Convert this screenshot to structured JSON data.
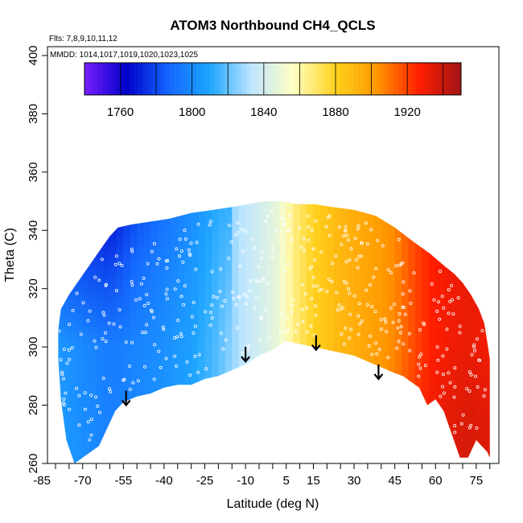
{
  "chart_data": {
    "type": "heatmap",
    "title": "ATOM3 Northbound CH4_QCLS",
    "annotations": {
      "flights": "Flts: 7,8,9,10,11,12",
      "dates": "MMDD: 1014,1017,1019,1020,1023,1025"
    },
    "xlabel": "Latitude (deg N)",
    "ylabel": "Theta (C)",
    "xlim": [
      -85,
      85
    ],
    "ylim": [
      260,
      405
    ],
    "x_ticks": [
      -85,
      -70,
      -55,
      -40,
      -25,
      -10,
      5,
      15,
      30,
      45,
      60,
      75
    ],
    "x_tick_labels": [
      "-85",
      "-70",
      "-55",
      "-40",
      "-25",
      "-10",
      "5",
      "15",
      "30",
      "45",
      "60",
      "75"
    ],
    "y_ticks": [
      260,
      280,
      300,
      320,
      340,
      360,
      380,
      400
    ],
    "y_tick_labels": [
      "260",
      "280",
      "300",
      "320",
      "340",
      "360",
      "380",
      "400"
    ],
    "colorbar": {
      "range": [
        1740,
        1950
      ],
      "ticks": [
        1760,
        1800,
        1840,
        1880,
        1920
      ],
      "tick_labels": [
        "1760",
        "1800",
        "1840",
        "1880",
        "1920"
      ],
      "colors": [
        "#7a1fff",
        "#0000c8",
        "#1465ff",
        "#1ea6ff",
        "#bfe6ff",
        "#ffffc0",
        "#ffd21e",
        "#ff9600",
        "#ff1e00",
        "#a01414"
      ]
    },
    "field": {
      "upper_boundary": [
        [
          -78,
          313
        ],
        [
          -75,
          318
        ],
        [
          -72,
          322
        ],
        [
          -69,
          326
        ],
        [
          -66,
          330
        ],
        [
          -63,
          334
        ],
        [
          -60,
          338
        ],
        [
          -57,
          341
        ],
        [
          -52,
          342
        ],
        [
          -45,
          343
        ],
        [
          -38,
          344
        ],
        [
          -30,
          346
        ],
        [
          -22,
          347
        ],
        [
          -15,
          348
        ],
        [
          -9,
          349
        ],
        [
          -3,
          350
        ],
        [
          3,
          350
        ],
        [
          9,
          349
        ],
        [
          15,
          349
        ],
        [
          22,
          348
        ],
        [
          30,
          347
        ],
        [
          38,
          345
        ],
        [
          45,
          341
        ],
        [
          52,
          336
        ],
        [
          58,
          332
        ],
        [
          63,
          328
        ],
        [
          67,
          325
        ],
        [
          70,
          322
        ],
        [
          73,
          318
        ],
        [
          76,
          313
        ],
        [
          78,
          308
        ],
        [
          79,
          302
        ],
        [
          80,
          296
        ],
        [
          80,
          290
        ]
      ],
      "lower_boundary": [
        [
          80,
          262
        ],
        [
          79,
          264
        ],
        [
          77,
          266
        ],
        [
          75,
          268
        ],
        [
          72,
          262
        ],
        [
          69,
          262
        ],
        [
          66,
          270
        ],
        [
          63,
          278
        ],
        [
          60,
          282
        ],
        [
          57,
          280
        ],
        [
          54,
          286
        ],
        [
          51,
          288
        ],
        [
          48,
          290
        ],
        [
          45,
          291
        ],
        [
          40,
          293
        ],
        [
          35,
          295
        ],
        [
          30,
          297
        ],
        [
          25,
          298
        ],
        [
          20,
          299
        ],
        [
          15,
          300
        ],
        [
          10,
          301
        ],
        [
          5,
          302
        ],
        [
          0,
          299
        ],
        [
          -5,
          297
        ],
        [
          -10,
          294
        ],
        [
          -15,
          292
        ],
        [
          -20,
          290
        ],
        [
          -25,
          289
        ],
        [
          -30,
          287
        ],
        [
          -35,
          287
        ],
        [
          -40,
          286
        ],
        [
          -45,
          284
        ],
        [
          -50,
          283
        ],
        [
          -55,
          281
        ],
        [
          -58,
          278
        ],
        [
          -61,
          272
        ],
        [
          -64,
          266
        ],
        [
          -67,
          264
        ],
        [
          -70,
          262
        ],
        [
          -73,
          260
        ],
        [
          -76,
          268
        ],
        [
          -78,
          282
        ],
        [
          -79,
          296
        ],
        [
          -79,
          306
        ]
      ],
      "latitude_profile": [
        [
          -80,
          1805
        ],
        [
          -70,
          1800
        ],
        [
          -60,
          1795
        ],
        [
          -50,
          1798
        ],
        [
          -40,
          1802
        ],
        [
          -30,
          1808
        ],
        [
          -20,
          1818
        ],
        [
          -12,
          1832
        ],
        [
          -5,
          1840
        ],
        [
          2,
          1848
        ],
        [
          8,
          1866
        ],
        [
          15,
          1880
        ],
        [
          22,
          1888
        ],
        [
          30,
          1894
        ],
        [
          38,
          1900
        ],
        [
          45,
          1906
        ],
        [
          52,
          1918
        ],
        [
          58,
          1926
        ],
        [
          65,
          1930
        ],
        [
          72,
          1932
        ],
        [
          80,
          1930
        ]
      ],
      "high_theta_anomaly": [
        [
          -60,
          1762
        ],
        [
          -55,
          1770
        ],
        [
          -50,
          1780
        ],
        [
          -40,
          1790
        ],
        [
          -30,
          1800
        ],
        [
          -20,
          1812
        ]
      ]
    },
    "arrows_latitude": [
      -54,
      -10,
      16,
      39
    ]
  }
}
